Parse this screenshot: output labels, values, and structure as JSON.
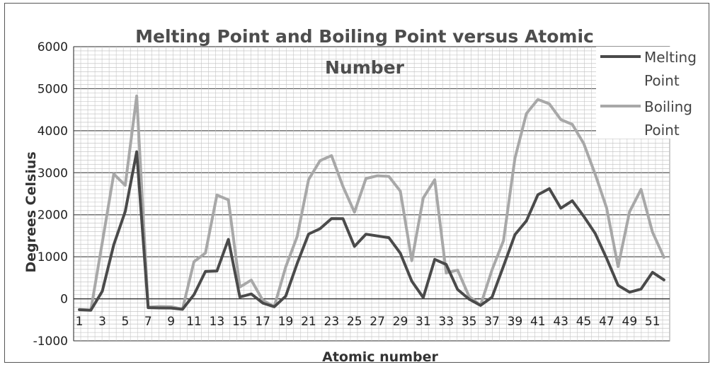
{
  "chart_data": {
    "type": "line",
    "title": "Melting Point and Boiling Point versus Atomic Number",
    "xlabel": "Atomic number",
    "ylabel": "Degrees Celsius",
    "ylim": [
      -1000,
      6000
    ],
    "yticks": [
      "-1000",
      "0",
      "1000",
      "2000",
      "3000",
      "4000",
      "5000",
      "6000"
    ],
    "grid": true,
    "legend_position": "top-right",
    "x": [
      1,
      2,
      3,
      4,
      5,
      6,
      7,
      8,
      9,
      10,
      11,
      12,
      13,
      14,
      15,
      16,
      17,
      18,
      19,
      20,
      21,
      22,
      23,
      24,
      25,
      26,
      27,
      28,
      29,
      30,
      31,
      32,
      33,
      34,
      35,
      36,
      37,
      38,
      39,
      40,
      41,
      42,
      43,
      44,
      45,
      46,
      47,
      48,
      49,
      50,
      51,
      52
    ],
    "x_tick_labels": [
      "1",
      "3",
      "5",
      "7",
      "9",
      "11",
      "13",
      "15",
      "17",
      "19",
      "21",
      "23",
      "25",
      "27",
      "29",
      "31",
      "33",
      "35",
      "37",
      "39",
      "41",
      "43",
      "45",
      "47",
      "49",
      "51"
    ],
    "series": [
      {
        "name": "Melting Point",
        "color": "#4a4a4a",
        "values": [
          -259,
          -272,
          181,
          1287,
          2077,
          3500,
          -210,
          -218,
          -220,
          -249,
          98,
          650,
          660,
          1414,
          44,
          115,
          -102,
          -189,
          64,
          842,
          1541,
          1668,
          1910,
          1907,
          1246,
          1538,
          1495,
          1455,
          1085,
          420,
          30,
          938,
          817,
          221,
          -7,
          -157,
          39,
          777,
          1526,
          1855,
          2477,
          2623,
          2157,
          2334,
          1964,
          1555,
          962,
          321,
          157,
          232,
          631,
          450
        ]
      },
      {
        "name": "Boiling Point",
        "color": "#a8a8a8",
        "values": [
          -253,
          -269,
          1342,
          2970,
          2700,
          4827,
          -196,
          -183,
          -188,
          -246,
          883,
          1090,
          2470,
          2355,
          280,
          445,
          -34,
          -186,
          759,
          1484,
          2836,
          3287,
          3407,
          2671,
          2061,
          2861,
          2927,
          2913,
          2562,
          907,
          2400,
          2833,
          614,
          685,
          59,
          -153,
          688,
          1382,
          3345,
          4409,
          4744,
          4639,
          4265,
          4150,
          3695,
          2963,
          2162,
          767,
          2072,
          2602,
          1587,
          988
        ]
      }
    ]
  }
}
